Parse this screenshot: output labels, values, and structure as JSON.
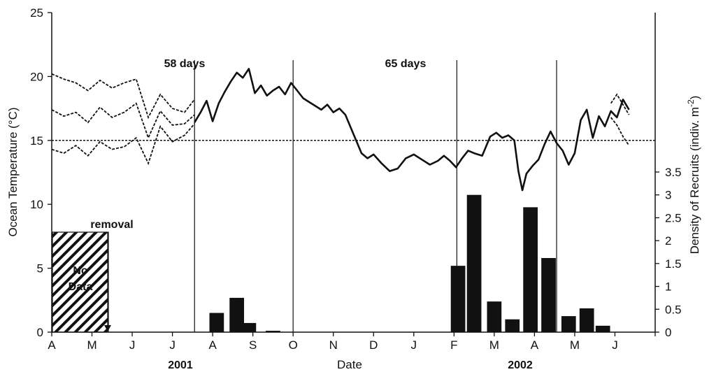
{
  "chart_data": {
    "type": "bar+line",
    "xlabel": "Date",
    "ylabel_left": "Ocean Temperature (°C)",
    "ylabel_right": "Density of Recruits (indiv. m",
    "ylabel_right_sup": "-2",
    "ylabel_right_close": ")",
    "ylim_left": [
      0,
      25
    ],
    "ylim_right": [
      0,
      3.5
    ],
    "yticks_left": [
      "0",
      "5",
      "10",
      "15",
      "20",
      "25"
    ],
    "yticks_right": [
      "0",
      "0.5",
      "1",
      "1.5",
      "2",
      "2.5",
      "3",
      "3.5"
    ],
    "x_month_labels": [
      "A",
      "M",
      "J",
      "J",
      "A",
      "S",
      "O",
      "N",
      "D",
      "J",
      "F",
      "M",
      "A",
      "M",
      "J"
    ],
    "year_labels": [
      "2001",
      "2002"
    ],
    "reference_line_temp": 15,
    "annotations": {
      "interval1": "58 days",
      "interval2": "65 days",
      "removal": "removal",
      "no_data_line1": "No",
      "no_data_line2": "Data"
    },
    "recruit_bars": {
      "months": [
        "Aug-early",
        "Sep",
        "Sep-late",
        "Oct",
        "Feb",
        "Feb-late",
        "Mar",
        "Mar-late",
        "Apr",
        "Apr-late",
        "May",
        "May-late",
        "Jun"
      ],
      "values": [
        0.42,
        0.75,
        0.2,
        0.03,
        1.45,
        3.0,
        0.67,
        0.28,
        2.73,
        1.62,
        0.35,
        0.52,
        0.14
      ],
      "x_month_index": [
        4.1,
        4.6,
        4.9,
        5.5,
        10.1,
        10.5,
        11.0,
        11.45,
        11.9,
        12.35,
        12.85,
        13.3,
        13.7
      ]
    },
    "temperature_series": {
      "name": "",
      "x_month_index": [
        3.55,
        3.7,
        3.85,
        4.0,
        4.15,
        4.3,
        4.45,
        4.6,
        4.75,
        4.9,
        5.05,
        5.2,
        5.35,
        5.5,
        5.65,
        5.8,
        5.95,
        6.1,
        6.25,
        6.4,
        6.55,
        6.7,
        6.85,
        7.0,
        7.15,
        7.3,
        7.5,
        7.7,
        7.85,
        8.0,
        8.2,
        8.4,
        8.6,
        8.8,
        9.0,
        9.2,
        9.4,
        9.6,
        9.75,
        9.9,
        10.05,
        10.2,
        10.35,
        10.5,
        10.7,
        10.9,
        11.05,
        11.2,
        11.35,
        11.5,
        11.6,
        11.7,
        11.8,
        11.95,
        12.1,
        12.25,
        12.4,
        12.55,
        12.7,
        12.85,
        13.0,
        13.15,
        13.3,
        13.45,
        13.6,
        13.75,
        13.9,
        14.05,
        14.2,
        14.35
      ],
      "values": [
        16.4,
        17.2,
        18.1,
        16.5,
        17.9,
        18.8,
        19.6,
        20.3,
        19.9,
        20.6,
        18.7,
        19.3,
        18.5,
        18.9,
        19.2,
        18.6,
        19.5,
        18.9,
        18.3,
        18.0,
        17.7,
        17.4,
        17.8,
        17.2,
        17.5,
        17.0,
        15.5,
        14.0,
        13.6,
        13.9,
        13.2,
        12.6,
        12.8,
        13.6,
        13.9,
        13.5,
        13.1,
        13.4,
        13.8,
        13.4,
        12.9,
        13.6,
        14.2,
        14.0,
        13.8,
        15.3,
        15.6,
        15.2,
        15.4,
        15.0,
        12.6,
        11.1,
        12.4,
        13.0,
        13.5,
        14.7,
        15.7,
        14.8,
        14.2,
        13.1,
        14.0,
        16.6,
        17.4,
        15.2,
        16.9,
        16.1,
        17.3,
        16.8,
        18.2,
        17.4
      ]
    },
    "envelope_prev_years": {
      "x_month_index": [
        0.0,
        0.3,
        0.6,
        0.9,
        1.2,
        1.5,
        1.8,
        2.1,
        2.4,
        2.7,
        3.0,
        3.3,
        3.55
      ],
      "upper": [
        20.2,
        19.8,
        19.5,
        18.9,
        19.7,
        19.1,
        19.5,
        19.8,
        16.8,
        18.6,
        17.5,
        17.2,
        18.2
      ],
      "mid": [
        17.4,
        16.9,
        17.2,
        16.4,
        17.6,
        16.8,
        17.2,
        17.9,
        15.2,
        17.3,
        16.2,
        16.3,
        17.0
      ],
      "lower": [
        14.3,
        14.0,
        14.6,
        13.8,
        14.9,
        14.3,
        14.5,
        15.2,
        13.2,
        16.1,
        14.9,
        15.4,
        16.3
      ],
      "tail_x": [
        13.9,
        14.05,
        14.2,
        14.35
      ],
      "tail_upper": [
        17.9,
        18.6,
        17.8,
        17.0
      ],
      "tail_lower": [
        16.8,
        16.2,
        15.3,
        14.6
      ]
    }
  }
}
